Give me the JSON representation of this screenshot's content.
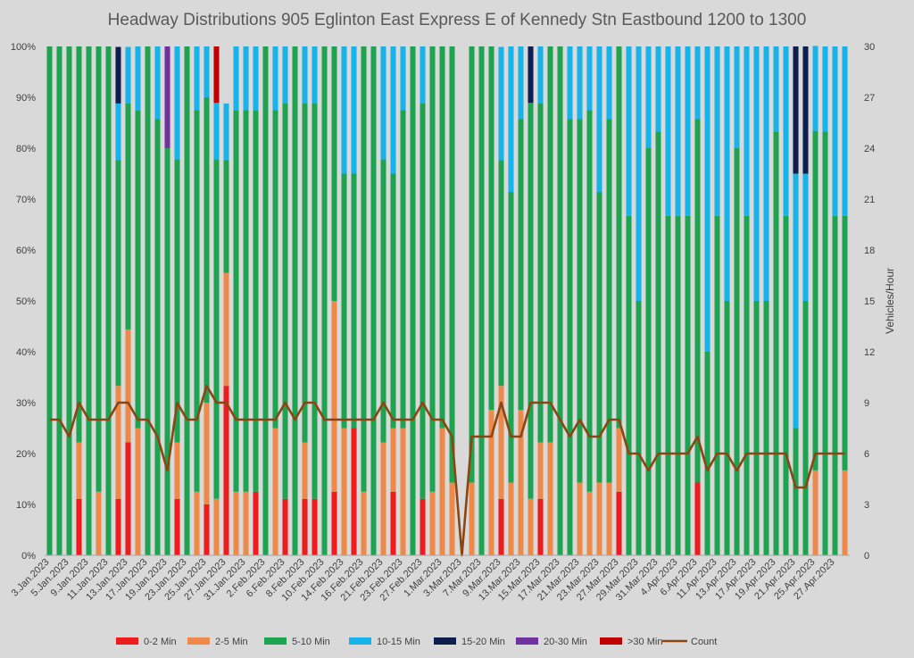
{
  "chart_data": {
    "type": "bar",
    "stacked": true,
    "title": "Headway Distributions 905 Eglinton East Express  E of Kennedy Stn Eastbound 1200 to 1300",
    "ylabel_left": "",
    "ylabel_right": "Vehicles/Hour",
    "y_left_ticks": [
      "0%",
      "10%",
      "20%",
      "30%",
      "40%",
      "50%",
      "60%",
      "70%",
      "80%",
      "90%",
      "100%"
    ],
    "y_right_ticks": [
      "0",
      "3",
      "6",
      "9",
      "12",
      "15",
      "18",
      "21",
      "24",
      "27",
      "30"
    ],
    "ylim_left": [
      0,
      100
    ],
    "ylim_right": [
      0,
      30
    ],
    "grid": false,
    "legend_position": "bottom",
    "categories": [
      "3.Jan.2023",
      "4.Jan.2023",
      "5.Jan.2023",
      "6.Jan.2023",
      "9.Jan.2023",
      "10.Jan.2023",
      "11.Jan.2023",
      "12.Jan.2023",
      "13.Jan.2023",
      "16.Jan.2023",
      "17.Jan.2023",
      "18.Jan.2023",
      "19.Jan.2023",
      "20.Jan.2023",
      "23.Jan.2023",
      "24.Jan.2023",
      "25.Jan.2023",
      "26.Jan.2023",
      "27.Jan.2023",
      "30.Jan.2023",
      "31.Jan.2023",
      "1.Feb.2023",
      "2.Feb.2023",
      "3.Feb.2023",
      "6.Feb.2023",
      "7.Feb.2023",
      "8.Feb.2023",
      "9.Feb.2023",
      "10.Feb.2023",
      "13.Feb.2023",
      "14.Feb.2023",
      "15.Feb.2023",
      "16.Feb.2023",
      "17.Feb.2023",
      "21.Feb.2023",
      "22.Feb.2023",
      "23.Feb.2023",
      "24.Feb.2023",
      "27.Feb.2023",
      "28.Feb.2023",
      "1.Mar.2023",
      "2.Mar.2023",
      "3.Mar.2023",
      "6.Mar.2023",
      "7.Mar.2023",
      "8.Mar.2023",
      "9.Mar.2023",
      "10.Mar.2023",
      "13.Mar.2023",
      "14.Mar.2023",
      "15.Mar.2023",
      "16.Mar.2023",
      "17.Mar.2023",
      "20.Mar.2023",
      "21.Mar.2023",
      "22.Mar.2023",
      "23.Mar.2023",
      "24.Mar.2023",
      "27.Mar.2023",
      "28.Mar.2023",
      "29.Mar.2023",
      "30.Mar.2023",
      "31.Mar.2023",
      "3.Apr.2023",
      "4.Apr.2023",
      "5.Apr.2023",
      "6.Apr.2023",
      "10.Apr.2023",
      "11.Apr.2023",
      "12.Apr.2023",
      "13.Apr.2023",
      "14.Apr.2023",
      "17.Apr.2023",
      "18.Apr.2023",
      "19.Apr.2023",
      "20.Apr.2023",
      "21.Apr.2023",
      "24.Apr.2023",
      "25.Apr.2023",
      "26.Apr.2023",
      "27.Apr.2023",
      "28.Apr.2023"
    ],
    "x_tick_labels": [
      "3.Jan.2023",
      "5.Jan.2023",
      "9.Jan.2023",
      "11.Jan.2023",
      "13.Jan.2023",
      "17.Jan.2023",
      "19.Jan.2023",
      "23.Jan.2023",
      "25.Jan.2023",
      "27.Jan.2023",
      "31.Jan.2023",
      "2.Feb.2023",
      "6.Feb.2023",
      "8.Feb.2023",
      "10.Feb.2023",
      "14.Feb.2023",
      "16.Feb.2023",
      "21.Feb.2023",
      "23.Feb.2023",
      "27.Feb.2023",
      "1.Mar.2023",
      "3.Mar.2023",
      "7.Mar.2023",
      "9.Mar.2023",
      "13.Mar.2023",
      "15.Mar.2023",
      "17.Mar.2023",
      "21.Mar.2023",
      "23.Mar.2023",
      "27.Mar.2023",
      "29.Mar.2023",
      "31.Mar.2023",
      "4.Apr.2023",
      "6.Apr.2023",
      "11.Apr.2023",
      "13.Apr.2023",
      "17.Apr.2023",
      "19.Apr.2023",
      "21.Apr.2023",
      "25.Apr.2023",
      "27.Apr.2023"
    ],
    "series": [
      {
        "name": "0-2 Min",
        "color": "#ee1c1c",
        "axis": "left",
        "values": [
          0,
          0,
          0,
          11.1,
          0,
          0,
          0,
          11.1,
          22.2,
          0,
          0,
          0,
          0,
          11.1,
          0,
          0,
          10,
          0,
          33.3,
          0,
          0,
          12.5,
          0,
          0,
          11.1,
          0,
          11.1,
          11.1,
          0,
          12.5,
          0,
          25,
          0,
          0,
          0,
          12.5,
          0,
          0,
          11.1,
          0,
          0,
          0,
          0,
          0,
          0,
          0,
          11.1,
          0,
          0,
          0,
          11.1,
          0,
          0,
          0,
          0,
          0,
          0,
          0,
          12.5,
          0,
          0,
          0,
          0,
          0,
          0,
          0,
          14.3,
          0,
          0,
          0,
          0,
          0,
          0,
          0,
          0,
          0,
          0,
          0,
          0,
          0,
          0,
          0
        ]
      },
      {
        "name": "2-5 Min",
        "color": "#ed8a4a",
        "axis": "left",
        "values": [
          0,
          0,
          0,
          11.1,
          0,
          12.5,
          0,
          22.2,
          22.2,
          25,
          0,
          0,
          0,
          11.1,
          0,
          12.5,
          20,
          11.1,
          22.2,
          12.5,
          12.5,
          0,
          0,
          25,
          0,
          0,
          11.1,
          0,
          0,
          37.5,
          25,
          0,
          12.5,
          0,
          22.2,
          12.5,
          25,
          0,
          0,
          12.5,
          25,
          14.3,
          0,
          14.3,
          0,
          28.6,
          22.2,
          14.3,
          28.6,
          11.1,
          11.1,
          22.2,
          0,
          0,
          14.3,
          12.5,
          14.3,
          14.3,
          12.5,
          0,
          0,
          0,
          0,
          0,
          0,
          0,
          0,
          0,
          0,
          0,
          0,
          0,
          0,
          0,
          0,
          0,
          0,
          0,
          16.7,
          0,
          0,
          16.7
        ]
      },
      {
        "name": "5-10 Min",
        "color": "#1ea451",
        "axis": "left",
        "values": [
          100,
          100,
          100,
          77.8,
          100,
          87.5,
          100,
          44.4,
          44.4,
          62.5,
          100,
          85.7,
          80,
          55.6,
          100,
          75,
          60,
          66.7,
          22.2,
          75,
          75,
          75,
          100,
          62.5,
          77.8,
          100,
          66.7,
          77.8,
          100,
          50,
          50,
          50,
          87.5,
          100,
          55.6,
          50,
          62.5,
          100,
          77.8,
          87.5,
          75,
          85.7,
          0,
          85.7,
          100,
          71.4,
          44.4,
          57.1,
          57.1,
          77.8,
          66.7,
          77.8,
          100,
          85.7,
          71.4,
          75,
          57.1,
          71.4,
          75,
          66.7,
          50,
          80,
          83.3,
          66.7,
          66.7,
          66.7,
          71.4,
          40,
          66.7,
          50,
          80,
          66.7,
          50,
          50,
          83.3,
          66.7,
          25,
          50,
          66.7,
          83.3,
          66.7,
          50
        ]
      },
      {
        "name": "10-15 Min",
        "color": "#16b4eb",
        "axis": "left",
        "values": [
          0,
          0,
          0,
          0,
          0,
          0,
          0,
          11.1,
          11.1,
          12.5,
          0,
          14.3,
          0,
          22.2,
          0,
          12.5,
          10,
          11.1,
          11.1,
          12.5,
          12.5,
          12.5,
          0,
          12.5,
          11.1,
          0,
          11.1,
          11.1,
          0,
          0,
          25,
          25,
          0,
          0,
          22.2,
          25,
          12.5,
          0,
          11.1,
          0,
          0,
          0,
          0,
          0,
          0,
          0,
          22.2,
          28.6,
          14.3,
          0,
          11.1,
          0,
          0,
          14.3,
          14.3,
          12.5,
          28.6,
          14.3,
          0,
          33.3,
          50,
          20,
          16.7,
          33.3,
          33.3,
          33.3,
          14.3,
          60,
          33.3,
          50,
          20,
          33.3,
          50,
          50,
          16.7,
          33.3,
          50,
          25,
          16.7,
          16.7,
          33.3,
          33.3
        ]
      },
      {
        "name": "15-20 Min",
        "color": "#0e1e4e",
        "axis": "left",
        "values": [
          0,
          0,
          0,
          0,
          0,
          0,
          0,
          11.1,
          0,
          0,
          0,
          0,
          0,
          0,
          0,
          0,
          0,
          0,
          0,
          0,
          0,
          0,
          0,
          0,
          0,
          0,
          0,
          0,
          0,
          0,
          0,
          0,
          0,
          0,
          0,
          0,
          0,
          0,
          0,
          0,
          0,
          0,
          0,
          0,
          0,
          0,
          0,
          0,
          0,
          11.1,
          0,
          0,
          0,
          0,
          0,
          0,
          0,
          0,
          0,
          0,
          0,
          0,
          0,
          0,
          0,
          0,
          0,
          0,
          0,
          0,
          0,
          0,
          0,
          0,
          0,
          0,
          25,
          25,
          0,
          0,
          0,
          0
        ]
      },
      {
        "name": "20-30 Min",
        "color": "#7030a0",
        "axis": "left",
        "values": [
          0,
          0,
          0,
          0,
          0,
          0,
          0,
          0,
          0,
          0,
          0,
          0,
          20,
          0,
          0,
          0,
          0,
          0,
          0,
          0,
          0,
          0,
          0,
          0,
          0,
          0,
          0,
          0,
          0,
          0,
          0,
          0,
          0,
          0,
          0,
          0,
          0,
          0,
          0,
          0,
          0,
          0,
          0,
          0,
          0,
          0,
          0,
          0,
          0,
          0,
          0,
          0,
          0,
          0,
          0,
          0,
          0,
          0,
          0,
          0,
          0,
          0,
          0,
          0,
          0,
          0,
          0,
          0,
          0,
          0,
          0,
          0,
          0,
          0,
          0,
          0,
          0,
          0,
          0,
          0,
          0,
          0
        ]
      },
      {
        "name": ">30 Min",
        "color": "#c00000",
        "axis": "left",
        "values": [
          0,
          0,
          0,
          0,
          0,
          0,
          0,
          0,
          0,
          0,
          0,
          0,
          0,
          0,
          0,
          0,
          0,
          11.1,
          0,
          0,
          0,
          0,
          0,
          0,
          0,
          0,
          0,
          0,
          0,
          0,
          0,
          0,
          0,
          0,
          0,
          0,
          0,
          0,
          0,
          0,
          0,
          0,
          0,
          0,
          0,
          0,
          0,
          0,
          0,
          0,
          0,
          0,
          0,
          0,
          0,
          0,
          0,
          0,
          0,
          0,
          0,
          0,
          0,
          0,
          0,
          0,
          0,
          0,
          0,
          0,
          0,
          0,
          0,
          0,
          0,
          0,
          0,
          0,
          0,
          0,
          0,
          0
        ]
      },
      {
        "name": "Count",
        "type": "line",
        "color": "#8b4513",
        "axis": "right",
        "values": [
          8,
          8,
          7,
          9,
          8,
          8,
          8,
          9,
          9,
          8,
          8,
          7,
          5,
          9,
          8,
          8,
          10,
          9,
          9,
          8,
          8,
          8,
          8,
          8,
          9,
          8,
          9,
          9,
          8,
          8,
          8,
          8,
          8,
          8,
          9,
          8,
          8,
          8,
          9,
          8,
          8,
          7,
          0,
          7,
          7,
          7,
          9,
          7,
          7,
          9,
          9,
          9,
          8,
          7,
          8,
          7,
          7,
          8,
          8,
          6,
          6,
          5,
          6,
          6,
          6,
          6,
          7,
          5,
          6,
          6,
          5,
          6,
          6,
          6,
          6,
          6,
          4,
          4,
          6,
          6,
          6,
          6
        ]
      }
    ]
  }
}
